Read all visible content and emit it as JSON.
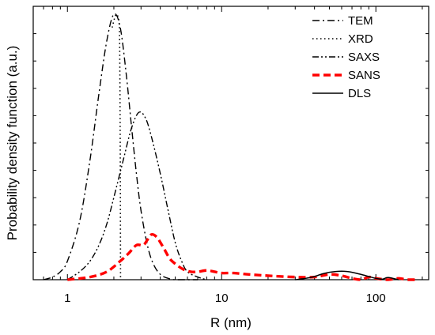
{
  "chart_data": {
    "type": "line",
    "title": "",
    "xlabel": "R (nm)",
    "ylabel": "Probability density function (a.u.)",
    "xscale": "log",
    "xlim": [
      0.6,
      220
    ],
    "ylim": [
      0,
      1.0
    ],
    "x_ticks": [
      1,
      10,
      100
    ],
    "x_tick_labels": [
      "1",
      "10",
      "100"
    ],
    "y_ticks_labeled": false,
    "grid": false,
    "legend_position": "top-right",
    "series": [
      {
        "name": "TEM",
        "style": "dashdot",
        "color": "#000000",
        "x": [
          0.7,
          0.8,
          0.9,
          1.0,
          1.2,
          1.4,
          1.6,
          1.8,
          2.0,
          2.2,
          2.4,
          2.6,
          2.8,
          3.0,
          3.3,
          3.6,
          4.0,
          4.5,
          5.0,
          6.0,
          7.0
        ],
        "y": [
          0.0,
          0.01,
          0.03,
          0.07,
          0.22,
          0.45,
          0.7,
          0.9,
          1.0,
          0.95,
          0.78,
          0.58,
          0.4,
          0.26,
          0.13,
          0.06,
          0.02,
          0.005,
          0.0,
          0.0,
          0.0
        ]
      },
      {
        "name": "XRD",
        "style": "dotted",
        "color": "#000000",
        "x": [
          1.95,
          2.02,
          2.05,
          2.08,
          2.13,
          2.16,
          2.18,
          2.2,
          2.21
        ],
        "y": [
          0.95,
          0.985,
          0.995,
          1.0,
          0.99,
          0.97,
          0.9,
          0.5,
          0.0
        ]
      },
      {
        "name": "SAXS",
        "style": "dashdotdot",
        "color": "#000000",
        "x": [
          1.0,
          1.2,
          1.4,
          1.6,
          1.8,
          2.0,
          2.3,
          2.6,
          2.9,
          3.2,
          3.5,
          4.0,
          4.5,
          5.0,
          5.5,
          6.0,
          7.0,
          8.0
        ],
        "y": [
          0.0,
          0.03,
          0.07,
          0.13,
          0.21,
          0.31,
          0.45,
          0.57,
          0.63,
          0.61,
          0.54,
          0.4,
          0.26,
          0.14,
          0.07,
          0.03,
          0.01,
          0.0
        ]
      },
      {
        "name": "SANS",
        "style": "dashed",
        "color": "#ff0000",
        "x": [
          1.0,
          1.4,
          1.8,
          2.2,
          2.5,
          2.8,
          3.1,
          3.3,
          3.5,
          3.8,
          4.2,
          4.6,
          5.0,
          5.6,
          6.3,
          7.0,
          8.0,
          9.0,
          10,
          12,
          15,
          20,
          30,
          40,
          50,
          60,
          70,
          80,
          90,
          100,
          120,
          140,
          160,
          180
        ],
        "y": [
          0.0,
          0.01,
          0.03,
          0.07,
          0.1,
          0.13,
          0.13,
          0.15,
          0.17,
          0.16,
          0.12,
          0.08,
          0.06,
          0.04,
          0.03,
          0.03,
          0.035,
          0.03,
          0.025,
          0.025,
          0.02,
          0.015,
          0.01,
          0.01,
          0.02,
          0.015,
          0.005,
          0.0,
          0.01,
          0.005,
          0.0,
          0.005,
          0.0,
          0.0
        ]
      },
      {
        "name": "DLS",
        "style": "solid",
        "color": "#000000",
        "x": [
          30,
          35,
          40,
          45,
          50,
          55,
          60,
          65,
          70,
          80,
          90,
          100,
          110,
          120,
          140
        ],
        "y": [
          0.0,
          0.005,
          0.012,
          0.022,
          0.028,
          0.031,
          0.032,
          0.031,
          0.028,
          0.02,
          0.012,
          0.005,
          0.002,
          0.008,
          0.0
        ]
      }
    ]
  }
}
